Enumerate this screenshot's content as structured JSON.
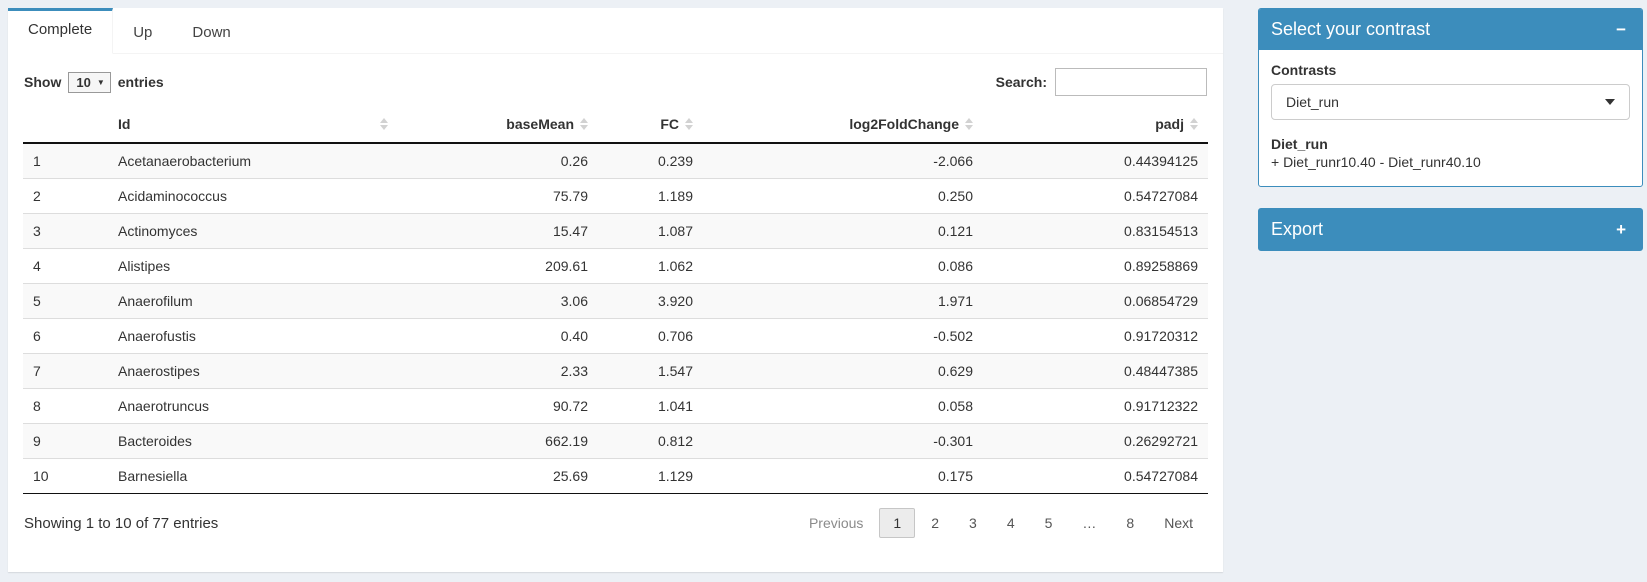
{
  "tabs": [
    {
      "label": "Complete",
      "active": true
    },
    {
      "label": "Up",
      "active": false
    },
    {
      "label": "Down",
      "active": false
    }
  ],
  "controls": {
    "show_label": "Show",
    "page_length": "10",
    "entries_label": "entries",
    "search_label": "Search:",
    "search_value": ""
  },
  "table": {
    "columns": [
      "Id",
      "baseMean",
      "FC",
      "log2FoldChange",
      "padj"
    ],
    "rows": [
      {
        "n": "1",
        "id": "Acetanaerobacterium",
        "baseMean": "0.26",
        "fc": "0.239",
        "log2fc": "-2.066",
        "padj": "0.44394125"
      },
      {
        "n": "2",
        "id": "Acidaminococcus",
        "baseMean": "75.79",
        "fc": "1.189",
        "log2fc": "0.250",
        "padj": "0.54727084"
      },
      {
        "n": "3",
        "id": "Actinomyces",
        "baseMean": "15.47",
        "fc": "1.087",
        "log2fc": "0.121",
        "padj": "0.83154513"
      },
      {
        "n": "4",
        "id": "Alistipes",
        "baseMean": "209.61",
        "fc": "1.062",
        "log2fc": "0.086",
        "padj": "0.89258869"
      },
      {
        "n": "5",
        "id": "Anaerofilum",
        "baseMean": "3.06",
        "fc": "3.920",
        "log2fc": "1.971",
        "padj": "0.06854729"
      },
      {
        "n": "6",
        "id": "Anaerofustis",
        "baseMean": "0.40",
        "fc": "0.706",
        "log2fc": "-0.502",
        "padj": "0.91720312"
      },
      {
        "n": "7",
        "id": "Anaerostipes",
        "baseMean": "2.33",
        "fc": "1.547",
        "log2fc": "0.629",
        "padj": "0.48447385"
      },
      {
        "n": "8",
        "id": "Anaerotruncus",
        "baseMean": "90.72",
        "fc": "1.041",
        "log2fc": "0.058",
        "padj": "0.91712322"
      },
      {
        "n": "9",
        "id": "Bacteroides",
        "baseMean": "662.19",
        "fc": "0.812",
        "log2fc": "-0.301",
        "padj": "0.26292721"
      },
      {
        "n": "10",
        "id": "Barnesiella",
        "baseMean": "25.69",
        "fc": "1.129",
        "log2fc": "0.175",
        "padj": "0.54727084"
      }
    ]
  },
  "footer": {
    "info": "Showing 1 to 10 of 77 entries",
    "pagination": [
      {
        "label": "Previous",
        "type": "prev",
        "name": "previous"
      },
      {
        "label": "1",
        "type": "active",
        "name": "page-1"
      },
      {
        "label": "2",
        "name": "page-2"
      },
      {
        "label": "3",
        "name": "page-3"
      },
      {
        "label": "4",
        "name": "page-4"
      },
      {
        "label": "5",
        "name": "page-5"
      },
      {
        "label": "…",
        "type": "ellipsis",
        "name": "ellipsis"
      },
      {
        "label": "8",
        "name": "page-8"
      },
      {
        "label": "Next",
        "type": "next",
        "name": "next"
      }
    ]
  },
  "contrast_box": {
    "title": "Select your contrast",
    "collapse_icon": "−",
    "contrasts_label": "Contrasts",
    "selected_contrast": "Diet_run",
    "detail_title": "Diet_run",
    "detail_formula": "+ Diet_runr10.40 - Diet_runr40.10"
  },
  "export_box": {
    "title": "Export",
    "expand_icon": "+"
  },
  "colors": {
    "accent": "#3c8dbc",
    "page_background": "#ecf0f5",
    "stripe": "#f9f9f9"
  }
}
